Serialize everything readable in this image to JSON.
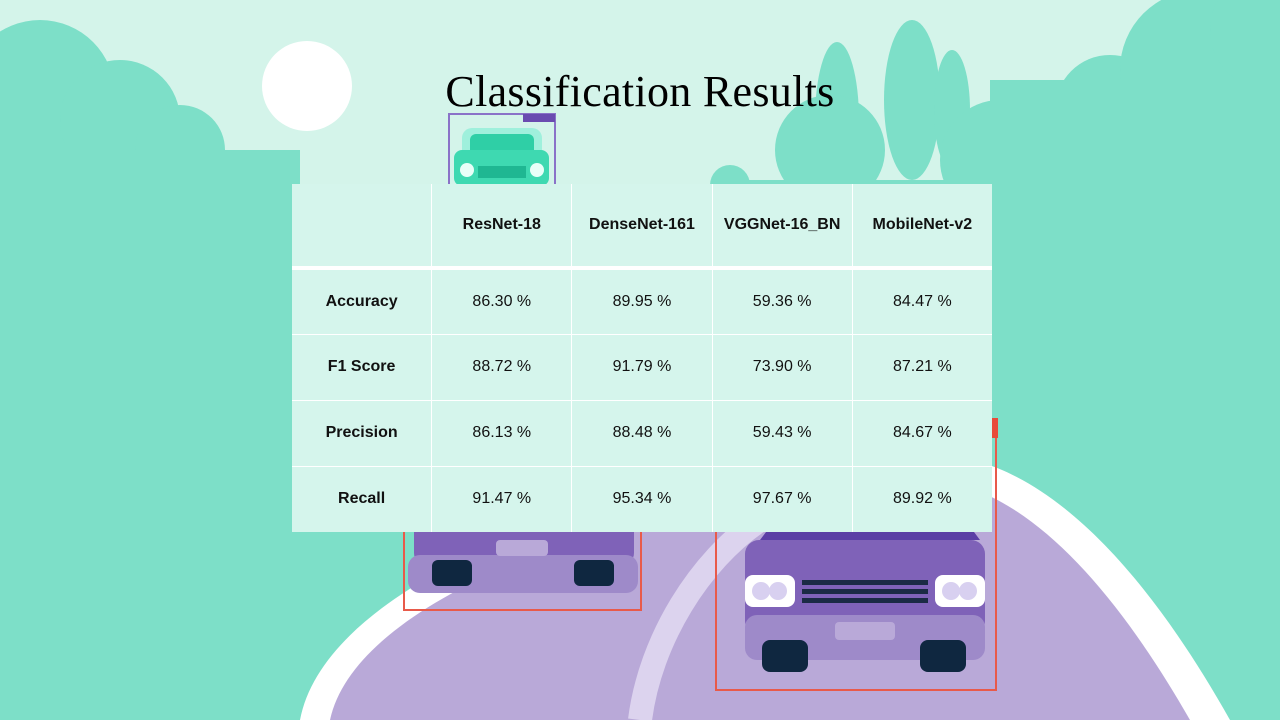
{
  "slide": {
    "title": "Classification Results"
  },
  "table": {
    "columns": [
      "",
      "ResNet-18",
      "DenseNet-161",
      "VGGNet-16_BN",
      "MobileNet-v2"
    ],
    "rows": [
      {
        "label": "Accuracy",
        "cells": [
          "86.30 %",
          "89.95 %",
          "59.36 %",
          "84.47 %"
        ]
      },
      {
        "label": "F1 Score",
        "cells": [
          "88.72 %",
          "91.79 %",
          "73.90 %",
          "87.21 %"
        ]
      },
      {
        "label": "Precision",
        "cells": [
          "86.13 %",
          "88.48 %",
          "59.43 %",
          "84.67 %"
        ]
      },
      {
        "label": "Recall",
        "cells": [
          "91.47 %",
          "95.34 %",
          "97.67 %",
          "89.92 %"
        ]
      }
    ]
  },
  "colors": {
    "sky": "#d4f4ea",
    "foliage": "#7ddfc8",
    "road": "#b9a9d8",
    "road_edge": "#ffffff",
    "car_body": "#7f62b8",
    "detection_box": "#e85a4a",
    "table_bg": "#d5f5ec"
  },
  "icons": [
    "sun-icon",
    "car-icon"
  ]
}
